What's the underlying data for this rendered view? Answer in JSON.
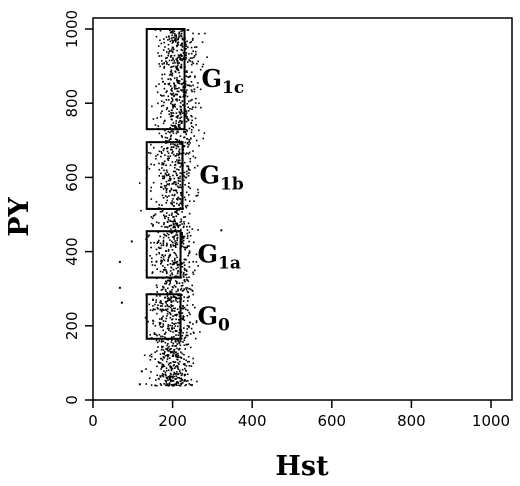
{
  "chart_data": {
    "type": "scatter",
    "title": "",
    "xlabel": "Hst",
    "ylabel": "PY",
    "xlim": [
      0,
      1000
    ],
    "ylim": [
      0,
      1000
    ],
    "x_ticks": [
      0,
      200,
      400,
      600,
      800,
      1000
    ],
    "y_ticks": [
      0,
      200,
      400,
      600,
      800,
      1000
    ],
    "grid": false,
    "point_cloud": {
      "x_center": 200,
      "x_spread": 45,
      "y_range": [
        40,
        1000
      ],
      "approx_points": 1800
    },
    "outliers": [
      {
        "x": 65,
        "y": 375
      },
      {
        "x": 65,
        "y": 305
      },
      {
        "x": 70,
        "y": 265
      },
      {
        "x": 95,
        "y": 430
      },
      {
        "x": 120,
        "y": 80
      },
      {
        "x": 115,
        "y": 45
      },
      {
        "x": 320,
        "y": 460
      }
    ],
    "gates": [
      {
        "name": "G1c",
        "base": "G",
        "sub": "1c",
        "x": [
          135,
          230
        ],
        "y": [
          730,
          1000
        ]
      },
      {
        "name": "G1b",
        "base": "G",
        "sub": "1b",
        "x": [
          135,
          225
        ],
        "y": [
          515,
          695
        ]
      },
      {
        "name": "G1a",
        "base": "G",
        "sub": "1a",
        "x": [
          135,
          220
        ],
        "y": [
          330,
          455
        ]
      },
      {
        "name": "G0",
        "base": "G",
        "sub": "0",
        "x": [
          135,
          220
        ],
        "y": [
          165,
          285
        ]
      }
    ]
  }
}
